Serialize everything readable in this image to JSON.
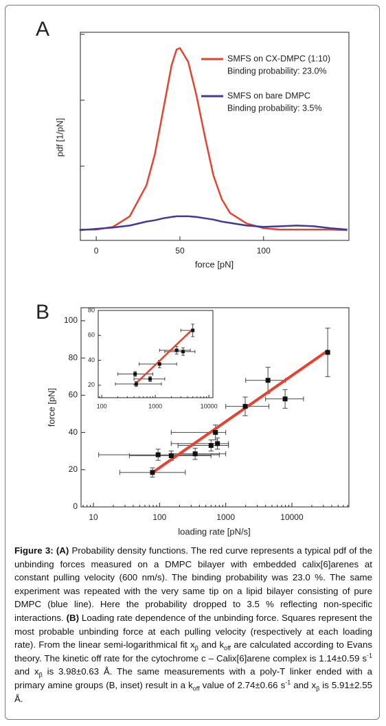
{
  "chart_data": [
    {
      "type": "line",
      "label": "A",
      "x_label": "force [pN]",
      "y_label": "pdf [1/pN]",
      "x": [
        -10,
        0,
        10,
        20,
        30,
        35,
        40,
        45,
        48,
        50,
        55,
        60,
        65,
        70,
        75,
        80,
        85,
        90,
        100,
        110,
        120,
        130,
        140,
        150
      ],
      "series": [
        {
          "name": "SMFS on CX-DMPC (1:10)",
          "annotation": "Binding probability: 23.0%",
          "color": "#e8412c",
          "values": [
            0.0004,
            0.0004,
            0.0008,
            0.0024,
            0.0071,
            0.0118,
            0.0185,
            0.0253,
            0.0277,
            0.0279,
            0.0258,
            0.0206,
            0.0144,
            0.0086,
            0.005,
            0.0029,
            0.0021,
            0.0013,
            0.0006,
            0.0004,
            0.0004,
            0.0004,
            0.0004,
            0.0003
          ]
        },
        {
          "name": "SMFS on bare DMPC",
          "annotation": "Binding probability: 3.5%",
          "color": "#3c3a9a",
          "values": [
            0.0003,
            0.0005,
            0.0007,
            0.001,
            0.0016,
            0.0018,
            0.0021,
            0.0023,
            0.0024,
            0.0024,
            0.0024,
            0.0023,
            0.0021,
            0.0019,
            0.0016,
            0.0014,
            0.0012,
            0.001,
            0.0008,
            0.0009,
            0.001,
            0.0009,
            0.0006,
            0.0004
          ]
        }
      ],
      "xlim": [
        -9.5,
        151
      ],
      "xticks": [
        0,
        50,
        100
      ],
      "ylim": [
        -0.00125,
        0.0303
      ],
      "yticks": [
        0.01,
        0.02,
        0.03
      ],
      "ytick_labels": false
    },
    {
      "type": "scatter",
      "label": "B",
      "x_label": "loading rate [pN/s]",
      "y_label": "force [pN]",
      "xscale": "log",
      "color": "#111111",
      "x": [
        78,
        95,
        150,
        345,
        600,
        700,
        750,
        1970,
        4350,
        7900,
        34800
      ],
      "values": [
        18.5,
        28,
        27.5,
        28.5,
        33,
        40,
        34,
        54,
        68,
        58,
        83
      ],
      "x_low": [
        25,
        12,
        35,
        150,
        190,
        150,
        150,
        1000,
        2000,
        4000,
        34800
      ],
      "x_high": [
        245,
        800,
        600,
        1000,
        1100,
        1000,
        1100,
        4500,
        8000,
        15000,
        34800
      ],
      "yerr": [
        2.5,
        3,
        2.5,
        3,
        3,
        4,
        3,
        5,
        7,
        5,
        13
      ],
      "fit": {
        "color": "#e8412c",
        "x": [
          75,
          35000
        ],
        "values": [
          18,
          84
        ]
      },
      "xlim": [
        6.5,
        72800
      ],
      "xticks": [
        10,
        100,
        1000,
        10000
      ],
      "ylim": [
        0,
        107
      ],
      "yticks": [
        0,
        20,
        40,
        60,
        80,
        100
      ]
    },
    {
      "type": "scatter",
      "xscale": "log",
      "color": "#111111",
      "x": [
        420,
        440,
        800,
        1200,
        2500,
        3300,
        5000
      ],
      "values": [
        29,
        21,
        25,
        37,
        48,
        47,
        64
      ],
      "x_low": [
        200,
        180,
        400,
        500,
        1200,
        1500,
        3000
      ],
      "x_high": [
        900,
        1300,
        1500,
        2500,
        4500,
        5500,
        5000
      ],
      "yerr": [
        2,
        2,
        2,
        3,
        3,
        3,
        5
      ],
      "fit": {
        "color": "#e8412c",
        "x": [
          400,
          5000
        ],
        "values": [
          20,
          65
        ]
      },
      "xlim": [
        86,
        11900
      ],
      "xticks": [
        100,
        1000,
        10000
      ],
      "ylim": [
        10,
        80
      ],
      "yticks": [
        20,
        40,
        60,
        80
      ]
    }
  ],
  "caption": {
    "segments": [
      "Figure 3: (A)",
      " Probability density functions. The red curve represents a typical pdf of the unbinding forces measured on a DMPC bilayer with embedded calix[6]arenes at constant pulling velocity (600 nm/s). The binding probability was 23.0 %. The same experiment was repeated with the very same tip on a lipid bilayer consisting of pure DMPC (blue line). Here the probability dropped to 3.5 % reflecting non-specific interactions. ",
      "(B)",
      " Loading rate dependence of the unbinding force. Squares represent the most probable unbinding force at each pulling velocity (respectively at each loading rate). From the linear semi-logarithmical fit x",
      "β",
      " and k",
      "off",
      " are calculated according to Evans theory. The kinetic off rate for the cytochrome c – Calix[6]arene complex is 1.14±0.59 s",
      "-1",
      " and x",
      "β",
      " is 3.98±0.63 Å. The same measurements with a poly-T linker ended with a primary amine groups (B, inset) result in a k",
      "off",
      " value of 2.74±0.66 s",
      "-1",
      " and x",
      "β",
      " is 5.91±2.55 Å."
    ]
  }
}
